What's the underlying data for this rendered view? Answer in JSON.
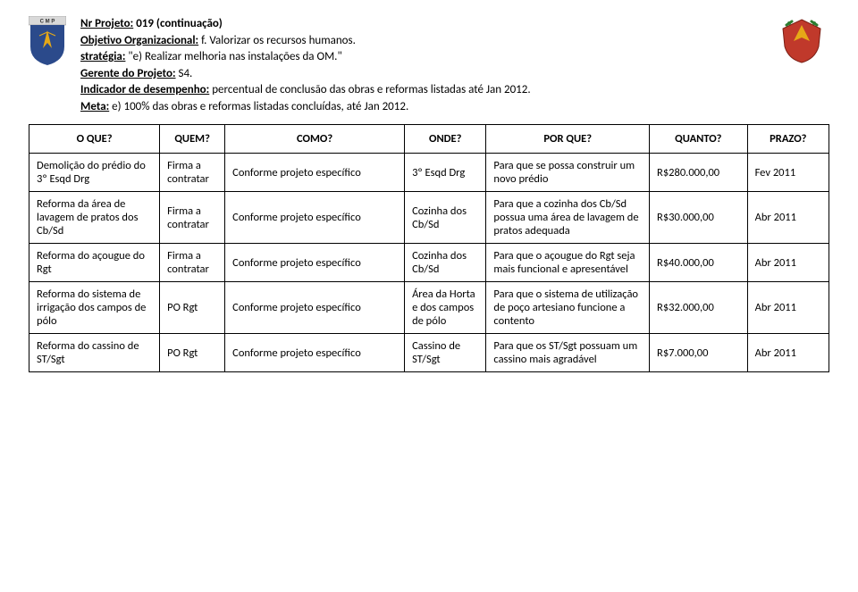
{
  "header": {
    "nr_projeto_label": "Nr   Projeto:",
    "nr_projeto_value": "019 (continuação)",
    "objetivo_label": "Objetivo Organizacional:",
    "objetivo_value": "f. Valorizar os recursos humanos.",
    "estrategia_label": "stratégia:",
    "estrategia_value": "\"e) Realizar melhoria nas instalações da OM.\"",
    "gerente_label": "Gerente do Projeto:",
    "gerente_value": "S4.",
    "indicador_label": "Indicador de desempenho:",
    "indicador_value": "percentual de conclusão das obras e reformas listadas até Jan 2012.",
    "meta_label": "Meta:",
    "meta_value": "e) 100%  das obras e reformas listadas concluídas, até Jan 2012."
  },
  "columns": {
    "oque": "O QUE?",
    "quem": "QUEM?",
    "como": "COMO?",
    "onde": "ONDE?",
    "porque": "POR QUE?",
    "quanto": "QUANTO?",
    "prazo": "PRAZO?"
  },
  "rows": [
    {
      "oque": "Demolição do prédio do 3º Esqd Drg",
      "quem": "Firma a contratar",
      "como": "Conforme projeto específico",
      "onde": "3º Esqd Drg",
      "porque": "Para que se possa construir um novo prédio",
      "quanto": "R$280.000,00",
      "prazo": "Fev 2011"
    },
    {
      "oque": "Reforma da área de lavagem de pratos dos Cb/Sd",
      "quem": "Firma a contratar",
      "como": "Conforme projeto específico",
      "onde": "Cozinha dos Cb/Sd",
      "porque": "Para que a cozinha dos Cb/Sd possua uma área de lavagem de pratos adequada",
      "quanto": "R$30.000,00",
      "prazo": "Abr 2011"
    },
    {
      "oque": "Reforma do açougue do Rgt",
      "quem": "Firma a contratar",
      "como": "Conforme projeto específico",
      "onde": "Cozinha dos Cb/Sd",
      "porque": "Para que o açougue do Rgt seja mais funcional e apresentável",
      "quanto": "R$40.000,00",
      "prazo": "Abr 2011"
    },
    {
      "oque": "Reforma do sistema de irrigação dos campos de pólo",
      "quem": "PO Rgt",
      "como": "Conforme projeto específico",
      "onde": "Área da Horta e dos campos de pólo",
      "porque": "Para que o sistema de utilização de poço artesiano funcione a contento",
      "quanto": "R$32.000,00",
      "prazo": "Abr 2011"
    },
    {
      "oque": "Reforma do cassino de ST/Sgt",
      "quem": "PO Rgt",
      "como": "Conforme projeto específico",
      "onde": "Cassino de ST/Sgt",
      "porque": "Para que os ST/Sgt possuam um cassino mais agradável",
      "quanto": "R$7.000,00",
      "prazo": "Abr 2011"
    }
  ],
  "colors": {
    "blue_shield": "#2b4a8b",
    "gold": "#e6a817",
    "red_shield": "#c0392b",
    "red_dark": "#7b1e14",
    "green": "#2e7d32"
  }
}
